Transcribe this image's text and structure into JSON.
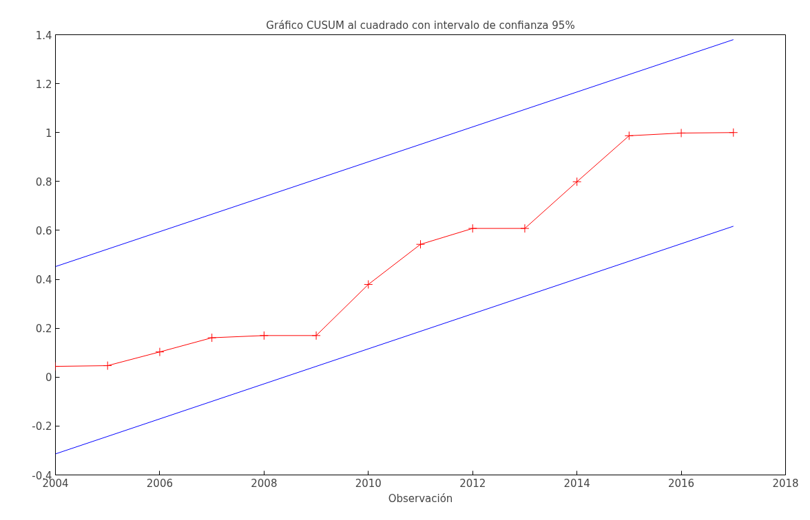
{
  "chart_data": {
    "type": "line",
    "title": "Gráfico CUSUM al cuadrado con intervalo de confianza 95%",
    "xlabel": "Observación",
    "xlim": [
      2004,
      2018
    ],
    "xticks": [
      2004,
      2006,
      2008,
      2010,
      2012,
      2014,
      2016,
      2018
    ],
    "ylim": [
      -0.4,
      1.4
    ],
    "yticks": [
      {
        "value": -0.4,
        "label": "-0.4"
      },
      {
        "value": -0.2,
        "label": "-0.2"
      },
      0,
      {
        "value": 0.2,
        "label": "0.2"
      },
      {
        "value": 0.4,
        "label": "0.4"
      },
      {
        "value": 0.6,
        "label": "0.6"
      },
      {
        "value": 0.8,
        "label": "0.8"
      },
      1,
      {
        "value": 1.2,
        "label": "1.2"
      },
      {
        "value": 1.4,
        "label": "1.4"
      }
    ],
    "grid": false,
    "series": [
      {
        "color": "#ff0000",
        "marker": "cross",
        "x": [
          2004,
          2005,
          2006,
          2007,
          2008,
          2009,
          2010,
          2011,
          2012,
          2013,
          2014,
          2015,
          2016,
          2017
        ],
        "values": [
          0.044,
          0.047,
          0.103,
          0.161,
          0.17,
          0.17,
          0.379,
          0.543,
          0.608,
          0.608,
          0.799,
          0.987,
          0.998,
          1.0
        ]
      },
      {
        "color": "#0000ff",
        "marker": "none",
        "x": [
          2004,
          2017
        ],
        "values": [
          0.452,
          1.38
        ]
      },
      {
        "color": "#0000ff",
        "marker": "none",
        "x": [
          2004,
          2017
        ],
        "values": [
          -0.314,
          0.617
        ]
      }
    ]
  }
}
